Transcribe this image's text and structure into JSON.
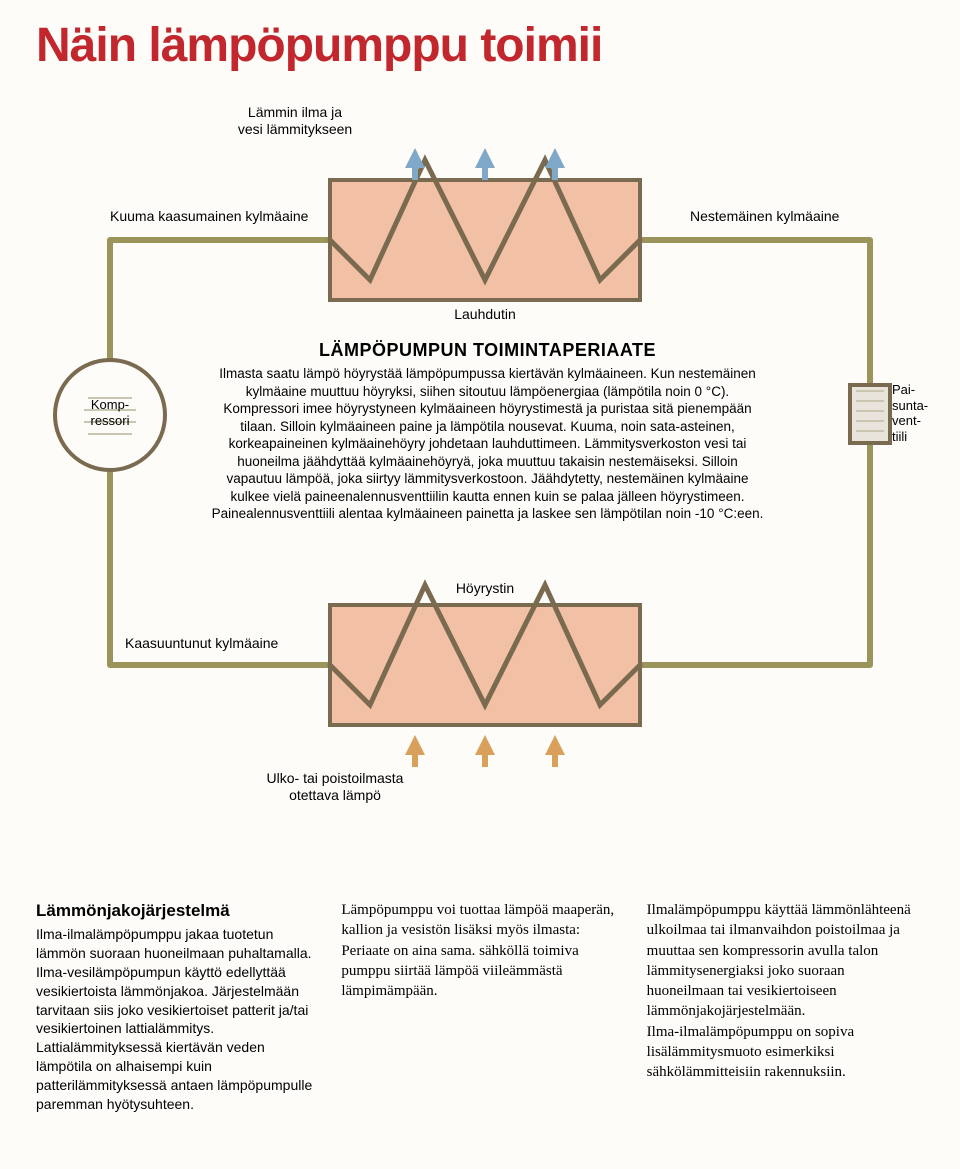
{
  "title": "Näin lämpöpumppu toimii",
  "diagram": {
    "colors": {
      "background": "#fdfcf8",
      "title_color": "#c1272d",
      "exchanger_fill": "#f2c0a4",
      "exchanger_stroke": "#7a6a4f",
      "pipe_color": "#9b955c",
      "arrow_up": "#7fa8c9",
      "arrow_down": "#d9a05b",
      "compressor_fill": "#fdfcf8",
      "compressor_stroke": "#7a6a4f",
      "valve_fill": "#e8e4dc",
      "valve_stroke": "#7a6a4f"
    },
    "labels": {
      "top_arrows": "Lämmin ilma ja\nvesi lämmitykseen",
      "top_left": "Kuuma kaasumainen kylmäaine",
      "top_right": "Nestemäinen kylmäaine",
      "top_exchanger": "Lauhdutin",
      "compressor": "Komp-\nressori",
      "valve": "Pai-\nsunta-\nvent-\ntiili",
      "bottom_exchanger": "Höyrystin",
      "bottom_left": "Kaasuuntunut kylmäaine",
      "bottom_arrows": "Ulko- tai poistoilmasta\notettava lämpö"
    },
    "center": {
      "heading": "LÄMPÖPUMPUN TOIMINTAPERIAATE",
      "body": "Ilmasta saatu lämpö höyrystää lämpöpumpussa kiertävän kylmäaineen. Kun nestemäinen kylmäaine muuttuu höyryksi, siihen sitoutuu lämpöenergiaa (lämpötila noin 0 °C). Kompressori imee höyrystyneen kylmäaineen höyrystimestä ja puristaa sitä pienempään tilaan. Silloin kylmäaineen paine ja lämpötila nousevat. Kuuma, noin sata-asteinen, korkeapaineinen kylmäainehöyry johdetaan lauhduttimeen. Lämmitysverkoston vesi tai huoneilma jäähdyttää kylmäainehöyryä, joka muuttuu takaisin nestemäiseksi. Silloin vapautuu lämpöä, joka siirtyy lämmitysverkostoon. Jäähdytetty, nestemäinen kylmäaine kulkee vielä paineenalennusventtiilin kautta ennen kuin se palaa jälleen höyrystimeen. Painealennusventtiili alentaa kylmäaineen painetta ja laskee sen lämpötilan noin -10 °C:een."
    }
  },
  "columns": {
    "col1": {
      "heading": "Lämmönjakojärjestelmä",
      "body": "Ilma-ilmalämpöpumppu jakaa tuotetun lämmön suoraan huoneilmaan puhaltamalla. Ilma-vesilämpöpumpun käyttö edellyttää vesikiertoista lämmönjakoa. Järjestelmään tarvitaan siis joko vesikiertoiset patterit ja/tai vesikiertoinen lattialämmitys. Lattialämmityksessä kiertävän veden lämpötila on alhaisempi kuin patterilämmityksessä antaen lämpöpumpulle paremman hyötysuhteen."
    },
    "col2": "Lämpöpumppu voi tuottaa lämpöä maaperän, kallion ja vesistön lisäksi myös ilmasta: Periaate on aina sama. sähköllä toimiva pumppu siirtää lämpöä viileämmästä lämpimämpään.",
    "col3": "Ilmalämpöpumppu käyttää lämmönlähteenä ulkoilmaa tai ilmanvaihdon poistoilmaa ja muuttaa sen kompressorin avulla talon lämmitysenergiaksi joko suoraan huoneilmaan tai vesikiertoiseen lämmönjakojärjestelmään.\n  Ilma-ilmalämpöpumppu on sopiva lisälämmitysmuoto esimerkiksi sähkölämmitteisiin rakennuksiin."
  }
}
